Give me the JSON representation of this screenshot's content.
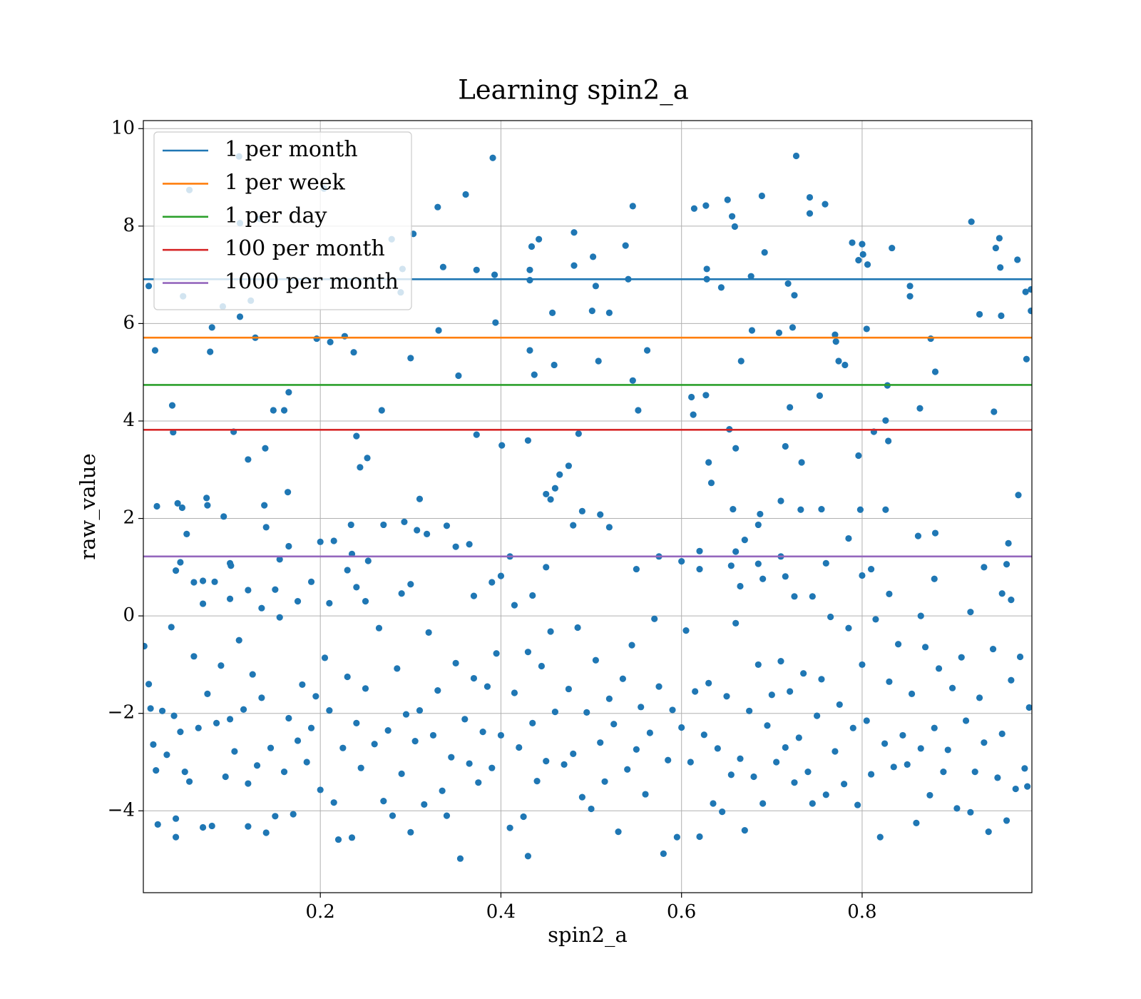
{
  "chart_data": {
    "type": "scatter",
    "title": "Learning spin2_a",
    "xlabel": "spin2_a",
    "ylabel": "raw_value",
    "color": "#1f77b4",
    "xlim": [
      0.004,
      0.988
    ],
    "ylim": [
      -5.68,
      10.165
    ],
    "xticks": [
      0.2,
      0.4,
      0.6,
      0.8
    ],
    "yticks": [
      {
        "value": -4,
        "label": "−4"
      },
      {
        "value": -2,
        "label": "−2"
      },
      0,
      2,
      4,
      6,
      8,
      10
    ],
    "grid": true,
    "legend": "upper left",
    "hlines": [
      {
        "name": "1 per month",
        "color": "#1f77b4",
        "value": 6.91
      },
      {
        "name": "1 per week",
        "color": "#ff7f0e",
        "value": 5.71
      },
      {
        "name": "1 per day",
        "color": "#2ca02c",
        "value": 4.74
      },
      {
        "name": "100 per month",
        "color": "#d62728",
        "value": 3.82
      },
      {
        "name": "1000 per month",
        "color": "#9467bd",
        "value": 1.22
      }
    ],
    "x": [
      0.01,
      0.017,
      0.019,
      0.036,
      0.037,
      0.042,
      0.047,
      0.048,
      0.055,
      0.074,
      0.075,
      0.078,
      0.08,
      0.092,
      0.093,
      0.11,
      0.111,
      0.111,
      0.104,
      0.12,
      0.123,
      0.128,
      0.133,
      0.138,
      0.139,
      0.148,
      0.16,
      0.165,
      0.164,
      0.196,
      0.204,
      0.211,
      0.227,
      0.237,
      0.24,
      0.244,
      0.252,
      0.268,
      0.279,
      0.289,
      0.291,
      0.3,
      0.303,
      0.33,
      0.331,
      0.336,
      0.353,
      0.361,
      0.373,
      0.373,
      0.391,
      0.393,
      0.394,
      0.401,
      0.43,
      0.432,
      0.432,
      0.432,
      0.434,
      0.437,
      0.442,
      0.457,
      0.459,
      0.481,
      0.481,
      0.486,
      0.502,
      0.501,
      0.505,
      0.508,
      0.52,
      0.538,
      0.541,
      0.546,
      0.546,
      0.552,
      0.562,
      0.611,
      0.613,
      0.614,
      0.627,
      0.628,
      0.628,
      0.627,
      0.63,
      0.633,
      0.644,
      0.651,
      0.653,
      0.656,
      0.659,
      0.66,
      0.657,
      0.666,
      0.677,
      0.678,
      0.689,
      0.692,
      0.687,
      0.708,
      0.71,
      0.715,
      0.718,
      0.72,
      0.725,
      0.723,
      0.727,
      0.733,
      0.732,
      0.742,
      0.742,
      0.759,
      0.753,
      0.755,
      0.77,
      0.771,
      0.774,
      0.781,
      0.789,
      0.796,
      0.796,
      0.8,
      0.801,
      0.806,
      0.805,
      0.798,
      0.813,
      0.826,
      0.828,
      0.829,
      0.826,
      0.833,
      0.853,
      0.853,
      0.864,
      0.876,
      0.881,
      0.862,
      0.881,
      0.921,
      0.93,
      0.948,
      0.952,
      0.953,
      0.954,
      0.946,
      0.972,
      0.973,
      0.981,
      0.987,
      0.987,
      0.982,
      0.04,
      0.045,
      0.052,
      0.06,
      0.07,
      0.07,
      0.083,
      0.1,
      0.101,
      0.1,
      0.12,
      0.135,
      0.14,
      0.15,
      0.155,
      0.165,
      0.175,
      0.19,
      0.2,
      0.21,
      0.215,
      0.23,
      0.234,
      0.235,
      0.24,
      0.25,
      0.253,
      0.27,
      0.29,
      0.293,
      0.3,
      0.307,
      0.31,
      0.318,
      0.34,
      0.35,
      0.365,
      0.37,
      0.39,
      0.4,
      0.41,
      0.415,
      0.435,
      0.45,
      0.45,
      0.455,
      0.46,
      0.465,
      0.475,
      0.48,
      0.49,
      0.51,
      0.52,
      0.55,
      0.575,
      0.6,
      0.62,
      0.62,
      0.655,
      0.66,
      0.665,
      0.67,
      0.685,
      0.685,
      0.69,
      0.71,
      0.715,
      0.725,
      0.745,
      0.76,
      0.785,
      0.8,
      0.81,
      0.83,
      0.865,
      0.88,
      0.92,
      0.935,
      0.955,
      0.96,
      0.962,
      0.965,
      0.005,
      0.01,
      0.012,
      0.015,
      0.018,
      0.02,
      0.025,
      0.03,
      0.035,
      0.038,
      0.04,
      0.04,
      0.045,
      0.05,
      0.055,
      0.06,
      0.065,
      0.07,
      0.075,
      0.08,
      0.085,
      0.09,
      0.095,
      0.1,
      0.105,
      0.11,
      0.115,
      0.12,
      0.12,
      0.125,
      0.13,
      0.135,
      0.14,
      0.145,
      0.15,
      0.155,
      0.16,
      0.165,
      0.17,
      0.175,
      0.18,
      0.185,
      0.19,
      0.195,
      0.2,
      0.205,
      0.21,
      0.215,
      0.22,
      0.225,
      0.23,
      0.235,
      0.24,
      0.245,
      0.25,
      0.26,
      0.265,
      0.27,
      0.275,
      0.28,
      0.285,
      0.29,
      0.295,
      0.3,
      0.305,
      0.31,
      0.315,
      0.32,
      0.325,
      0.33,
      0.335,
      0.34,
      0.345,
      0.35,
      0.355,
      0.36,
      0.365,
      0.37,
      0.375,
      0.38,
      0.385,
      0.39,
      0.395,
      0.4,
      0.41,
      0.415,
      0.42,
      0.425,
      0.43,
      0.43,
      0.435,
      0.44,
      0.445,
      0.45,
      0.455,
      0.46,
      0.47,
      0.475,
      0.48,
      0.485,
      0.49,
      0.495,
      0.5,
      0.505,
      0.51,
      0.515,
      0.52,
      0.525,
      0.53,
      0.535,
      0.54,
      0.545,
      0.55,
      0.555,
      0.56,
      0.565,
      0.57,
      0.575,
      0.58,
      0.585,
      0.59,
      0.595,
      0.6,
      0.605,
      0.61,
      0.615,
      0.62,
      0.625,
      0.63,
      0.635,
      0.64,
      0.645,
      0.65,
      0.655,
      0.66,
      0.665,
      0.67,
      0.675,
      0.68,
      0.685,
      0.69,
      0.695,
      0.7,
      0.705,
      0.71,
      0.715,
      0.72,
      0.725,
      0.73,
      0.735,
      0.74,
      0.745,
      0.75,
      0.755,
      0.76,
      0.765,
      0.77,
      0.775,
      0.78,
      0.785,
      0.79,
      0.795,
      0.8,
      0.805,
      0.81,
      0.815,
      0.82,
      0.825,
      0.83,
      0.835,
      0.84,
      0.845,
      0.85,
      0.855,
      0.86,
      0.865,
      0.87,
      0.875,
      0.88,
      0.885,
      0.89,
      0.895,
      0.9,
      0.905,
      0.91,
      0.915,
      0.92,
      0.925,
      0.93,
      0.935,
      0.94,
      0.945,
      0.95,
      0.955,
      0.96,
      0.965,
      0.97,
      0.975,
      0.98,
      0.985,
      0.983
    ],
    "values": [
      6.77,
      5.45,
      2.25,
      4.32,
      3.77,
      2.31,
      2.22,
      6.56,
      8.74,
      2.42,
      2.27,
      5.42,
      5.92,
      6.35,
      2.04,
      9.43,
      8.06,
      6.14,
      3.78,
      3.21,
      6.47,
      5.71,
      8.15,
      2.27,
      3.44,
      4.22,
      4.22,
      4.59,
      2.54,
      5.69,
      8.77,
      5.62,
      5.74,
      5.41,
      3.69,
      3.05,
      3.24,
      4.22,
      7.73,
      6.64,
      7.12,
      5.29,
      7.84,
      8.39,
      5.86,
      7.16,
      4.93,
      8.65,
      3.72,
      7.1,
      9.4,
      7.0,
      6.02,
      3.5,
      3.6,
      7.1,
      6.89,
      5.45,
      7.58,
      4.95,
      7.73,
      6.22,
      5.15,
      7.87,
      7.19,
      3.74,
      7.37,
      6.26,
      6.77,
      5.23,
      6.22,
      7.6,
      6.91,
      8.41,
      4.83,
      4.22,
      5.45,
      4.49,
      4.13,
      8.36,
      8.42,
      6.91,
      7.12,
      4.53,
      3.15,
      2.73,
      6.74,
      8.54,
      3.83,
      8.2,
      7.99,
      3.44,
      2.19,
      5.23,
      6.97,
      5.86,
      8.62,
      7.46,
      2.09,
      5.81,
      2.36,
      3.48,
      6.82,
      4.28,
      6.58,
      5.92,
      9.44,
      3.15,
      2.18,
      8.59,
      8.26,
      8.45,
      4.52,
      2.19,
      5.77,
      5.63,
      5.23,
      5.15,
      7.66,
      7.3,
      3.29,
      7.63,
      7.42,
      7.21,
      5.89,
      2.18,
      3.78,
      4.01,
      4.73,
      3.59,
      2.18,
      7.55,
      6.77,
      6.56,
      4.26,
      5.69,
      5.01,
      1.64,
      1.7,
      8.09,
      6.19,
      7.55,
      7.75,
      7.15,
      6.16,
      4.19,
      7.31,
      2.48,
      6.65,
      6.7,
      6.26,
      5.27,
      0.93,
      1.1,
      1.68,
      0.69,
      0.72,
      0.25,
      0.7,
      1.08,
      1.03,
      0.35,
      0.53,
      0.16,
      1.82,
      0.54,
      1.16,
      1.43,
      0.3,
      0.7,
      1.52,
      0.26,
      1.54,
      0.94,
      1.87,
      1.27,
      0.59,
      0.3,
      1.13,
      1.87,
      0.46,
      1.93,
      0.65,
      1.76,
      2.4,
      1.68,
      1.85,
      1.42,
      1.47,
      0.41,
      0.69,
      0.82,
      1.22,
      0.22,
      0.42,
      1.0,
      2.5,
      2.39,
      2.62,
      2.9,
      3.08,
      1.86,
      2.15,
      2.08,
      1.82,
      0.96,
      1.22,
      1.12,
      0.96,
      1.33,
      1.03,
      1.32,
      0.61,
      1.56,
      1.07,
      1.87,
      0.76,
      1.22,
      0.81,
      0.4,
      0.4,
      1.08,
      1.59,
      0.83,
      0.96,
      0.45,
      0.0,
      0.76,
      0.08,
      1.0,
      0.46,
      1.06,
      1.49,
      0.33,
      -0.62,
      -1.4,
      -1.9,
      -2.64,
      -3.17,
      -4.28,
      -1.95,
      -2.85,
      -0.23,
      -2.05,
      -4.54,
      -4.16,
      -2.38,
      -3.2,
      -3.4,
      -0.83,
      -2.3,
      -4.34,
      -1.6,
      -4.31,
      -2.2,
      -1.02,
      -3.3,
      -2.12,
      -2.78,
      -0.5,
      -1.92,
      -3.44,
      -4.32,
      -1.2,
      -3.07,
      -1.68,
      -4.45,
      -2.71,
      -4.11,
      -0.03,
      -3.2,
      -2.1,
      -4.07,
      -2.56,
      -1.41,
      -3.0,
      -2.3,
      -1.65,
      -3.57,
      -0.86,
      -1.94,
      -3.83,
      -4.59,
      -2.71,
      -1.25,
      -4.55,
      -2.2,
      -3.12,
      -1.49,
      -2.63,
      -0.25,
      -3.8,
      -2.35,
      -4.1,
      -1.08,
      -3.24,
      -2.02,
      -4.44,
      -2.57,
      -1.94,
      -3.87,
      -0.34,
      -2.45,
      -1.53,
      -3.59,
      -4.1,
      -2.9,
      -0.97,
      -4.98,
      -2.12,
      -3.03,
      -1.28,
      -3.42,
      -2.38,
      -1.45,
      -3.12,
      -0.77,
      -2.45,
      -4.35,
      -1.58,
      -2.7,
      -4.12,
      -0.74,
      -4.93,
      -2.2,
      -3.39,
      -1.03,
      -2.98,
      -0.32,
      -1.97,
      -3.05,
      -1.5,
      -2.83,
      -0.24,
      -3.72,
      -1.98,
      -3.96,
      -0.91,
      -2.6,
      -3.4,
      -1.7,
      -2.22,
      -4.43,
      -1.29,
      -3.15,
      -0.6,
      -2.74,
      -1.87,
      -3.66,
      -2.4,
      -0.06,
      -1.45,
      -4.88,
      -2.96,
      -1.93,
      -4.54,
      -2.29,
      -0.3,
      -3.0,
      -1.55,
      -4.53,
      -2.44,
      -1.38,
      -3.85,
      -2.72,
      -4.02,
      -1.65,
      -3.26,
      -0.15,
      -2.93,
      -4.4,
      -1.95,
      -3.3,
      -1.0,
      -3.85,
      -2.25,
      -1.62,
      -3.0,
      -0.93,
      -2.7,
      -1.55,
      -3.42,
      -2.5,
      -1.18,
      -3.2,
      -3.85,
      -2.05,
      -1.3,
      -3.67,
      -0.02,
      -2.78,
      -1.82,
      -3.45,
      -0.25,
      -2.3,
      -3.88,
      -1.0,
      -2.15,
      -3.25,
      -0.07,
      -4.54,
      -2.62,
      -1.35,
      -3.1,
      -0.58,
      -2.45,
      -3.05,
      -1.6,
      -4.25,
      -2.72,
      -0.64,
      -3.68,
      -2.3,
      -1.08,
      -3.2,
      -2.75,
      -1.48,
      -3.95,
      -0.85,
      -2.15,
      -4.03,
      -3.2,
      -1.68,
      -2.6,
      -4.43,
      -0.68,
      -3.32,
      -2.42,
      -4.2,
      -1.32,
      -3.55,
      -0.84,
      -3.13,
      -1.88,
      -3.5
    ]
  }
}
